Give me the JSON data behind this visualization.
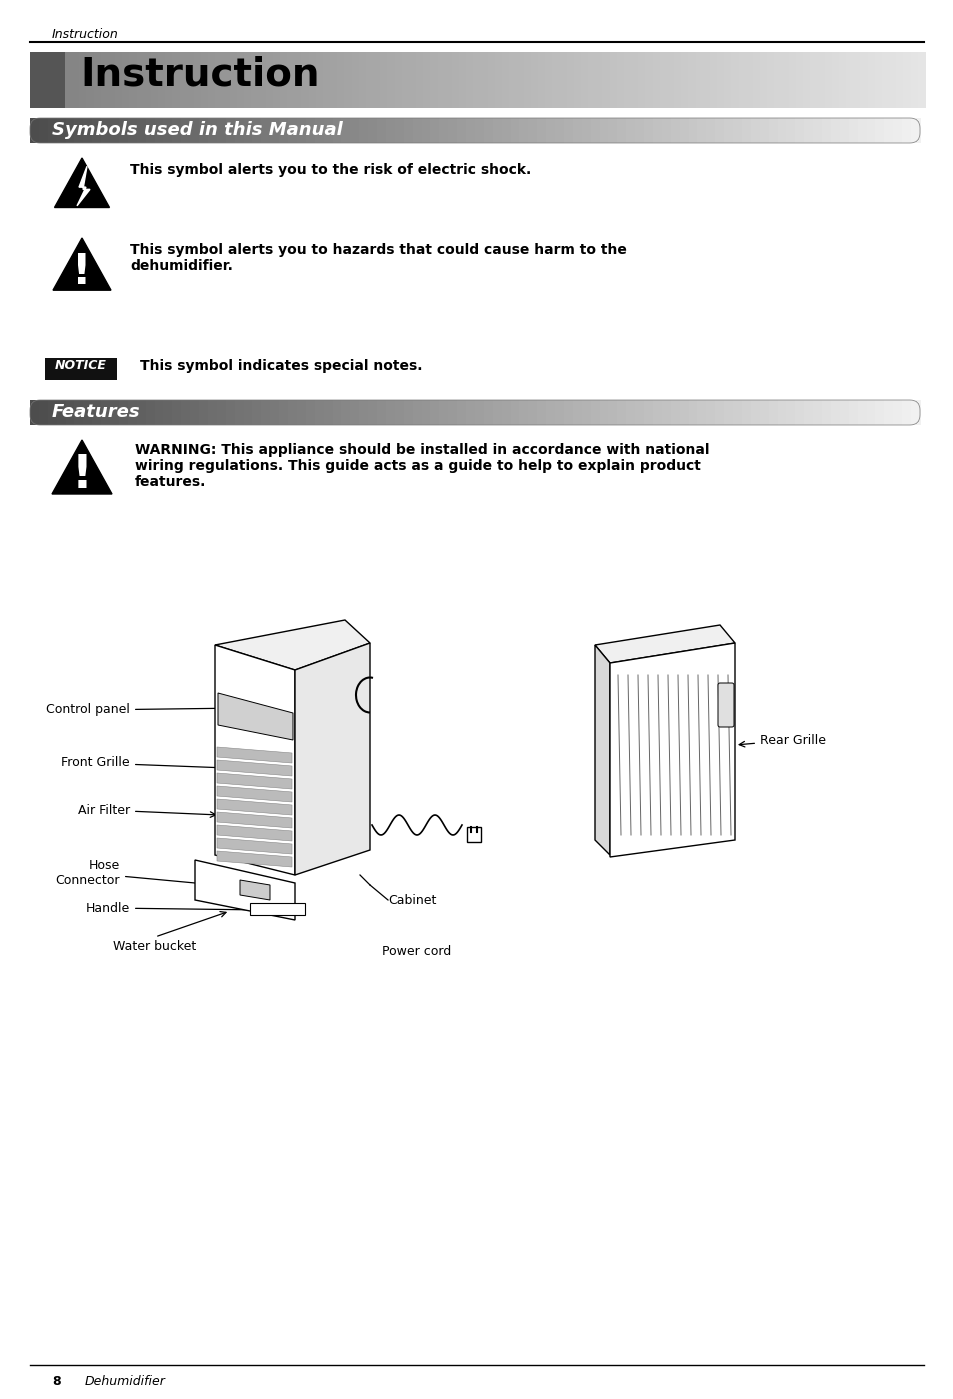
{
  "page_bg": "#ffffff",
  "header_text": "Instruction",
  "title_text": "Instruction",
  "title_font_size": 28,
  "section1_bar_text": "Symbols used in this Manual",
  "section1_font_size": 13,
  "symbol1_text": "This symbol alerts you to the risk of electric shock.",
  "symbol2_text": "This symbol alerts you to hazards that could cause harm to the\ndehumidifier.",
  "symbol3_label": "NOTICE",
  "symbol3_text": "This symbol indicates special notes.",
  "section2_bar_text": "Features",
  "section2_font_size": 13,
  "warning_text": "WARNING: This appliance should be installed in accordance with national\nwiring regulations. This guide acts as a guide to help to explain product\nfeatures.",
  "label_control_panel": "Control panel",
  "label_front_grille": "Front Grille",
  "label_air_filter": "Air Filter",
  "label_hose_connector": "Hose\nConnector",
  "label_handle": "Handle",
  "label_water_bucket": "Water bucket",
  "label_cabinet": "Cabinet",
  "label_power_cord": "Power cord",
  "label_rear_grille": "Rear Grille",
  "footer_page": "8",
  "footer_text": "Dehumidifier",
  "text_color": "#000000",
  "notice_bg": "#111111",
  "notice_fg": "#ffffff"
}
